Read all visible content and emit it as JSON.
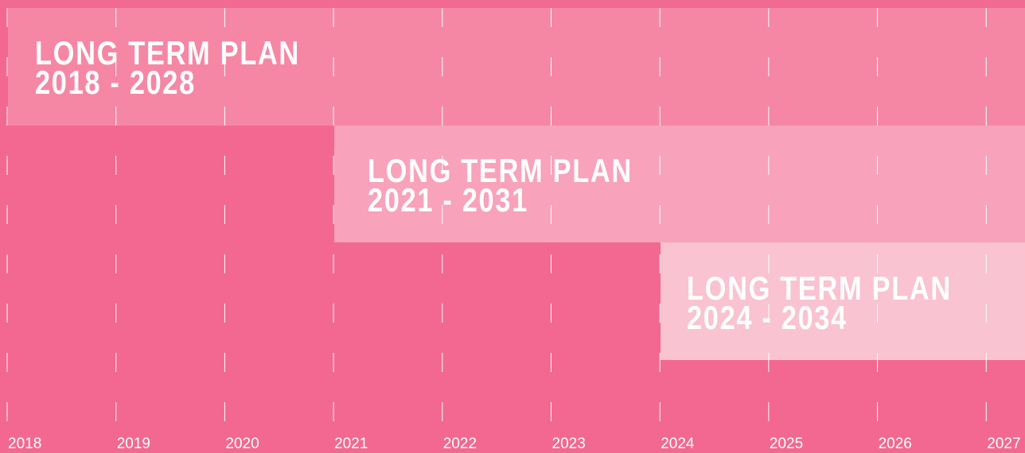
{
  "plans": [
    {
      "title": "LONG TERM PLAN",
      "period": "2018 - 2028"
    },
    {
      "title": "LONG TERM PLAN",
      "period": "2021 - 2031"
    },
    {
      "title": "LONG TERM PLAN",
      "period": "2024 - 2034"
    }
  ],
  "years": [
    "2018",
    "2019",
    "2020",
    "2021",
    "2022",
    "2023",
    "2024",
    "2025",
    "2026",
    "2027"
  ]
}
